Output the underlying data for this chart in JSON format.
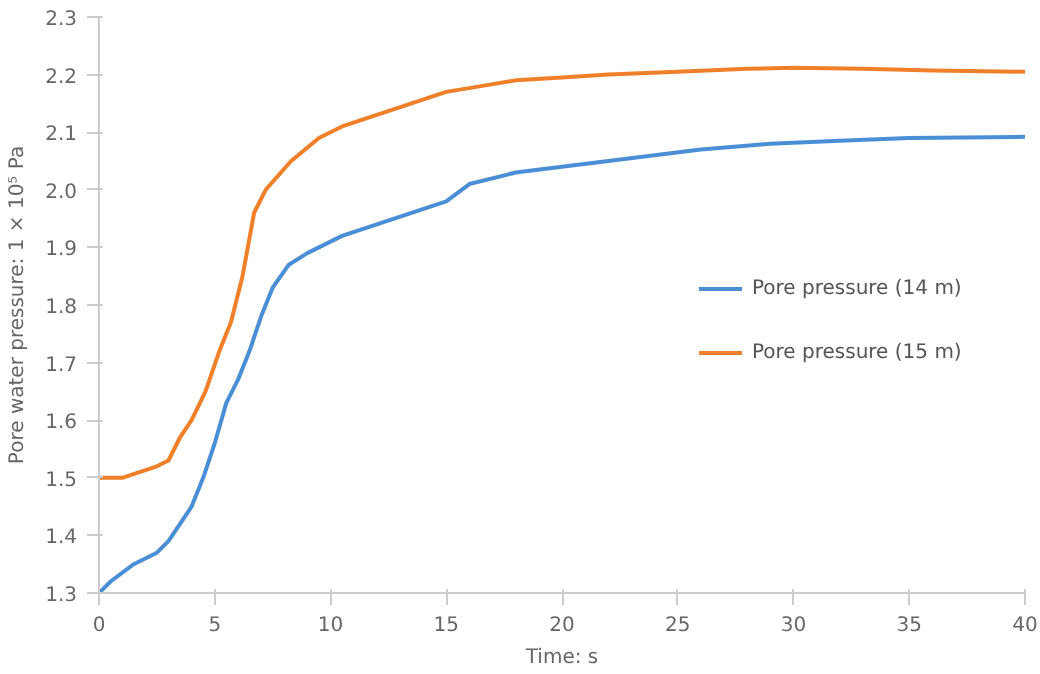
{
  "chart_data": {
    "type": "line",
    "xlabel": "Time: s",
    "ylabel": "Pore water pressure: 1 × 10⁵ Pa",
    "xlim": [
      0,
      40
    ],
    "xticks": [
      0,
      5,
      10,
      15,
      20,
      25,
      30,
      35,
      40
    ],
    "ylim": [
      1.3,
      2.3
    ],
    "yticks": [
      {
        "value": 1.3,
        "label": "1.3"
      },
      {
        "value": 1.4,
        "label": "1.4"
      },
      {
        "value": 1.5,
        "label": "1.5"
      },
      {
        "value": 1.6,
        "label": "1.6"
      },
      {
        "value": 1.7,
        "label": "1.7"
      },
      {
        "value": 1.8,
        "label": "1.8"
      },
      {
        "value": 1.9,
        "label": "1.9"
      },
      {
        "value": 2.0,
        "label": "2.0"
      },
      {
        "value": 2.1,
        "label": "2.1"
      },
      {
        "value": 2.2,
        "label": "2.2"
      },
      {
        "value": 2.3,
        "label": "2.3"
      }
    ],
    "grid": false,
    "legend": "right",
    "marker": "none",
    "line_style": "solid",
    "series": [
      {
        "name": "Pore pressure (14 m)",
        "color": "#4a8fd6",
        "x": [
          0,
          0.5,
          1.5,
          2.5,
          3,
          3.5,
          4,
          4.5,
          5,
          5.5,
          6,
          6.5,
          7,
          7.5,
          8.2,
          9,
          10.5,
          12,
          13.5,
          15,
          16,
          18,
          20,
          22,
          24,
          26,
          29,
          32,
          35,
          40
        ],
        "values": [
          1.3,
          1.32,
          1.35,
          1.37,
          1.39,
          1.42,
          1.45,
          1.5,
          1.56,
          1.63,
          1.67,
          1.72,
          1.78,
          1.83,
          1.87,
          1.89,
          1.92,
          1.94,
          1.96,
          1.98,
          2.01,
          2.03,
          2.04,
          2.05,
          2.06,
          2.07,
          2.08,
          2.085,
          2.09,
          2.092
        ]
      },
      {
        "name": "Pore pressure (15 m)",
        "color": "#f07f2a",
        "x": [
          0,
          1,
          2.5,
          3,
          3.5,
          4,
          4.6,
          5.2,
          5.7,
          6.2,
          6.7,
          7.2,
          8.3,
          9.5,
          10.5,
          12,
          13.5,
          15,
          16.5,
          18,
          20,
          22,
          25,
          28,
          30,
          33,
          36,
          40
        ],
        "values": [
          1.5,
          1.5,
          1.52,
          1.53,
          1.57,
          1.6,
          1.65,
          1.72,
          1.77,
          1.85,
          1.96,
          2.0,
          2.05,
          2.09,
          2.11,
          2.13,
          2.15,
          2.17,
          2.18,
          2.19,
          2.195,
          2.2,
          2.205,
          2.21,
          2.212,
          2.21,
          2.207,
          2.205
        ]
      }
    ]
  }
}
